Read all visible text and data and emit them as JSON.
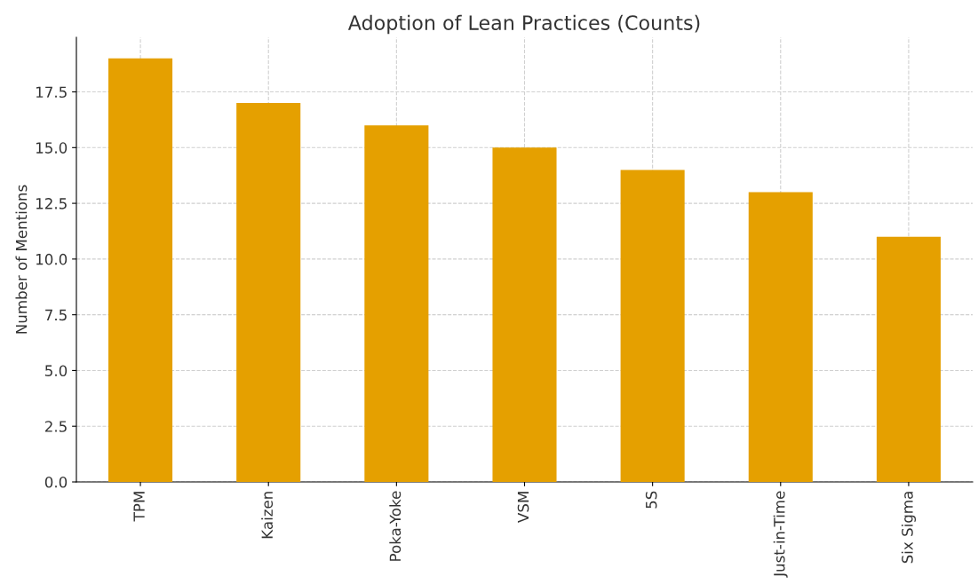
{
  "chart_data": {
    "type": "bar",
    "title": "Adoption of Lean Practices (Counts)",
    "ylabel": "Number of Mentions",
    "categories": [
      "TPM",
      "Kaizen",
      "Poka-Yoke",
      "VSM",
      "5S",
      "Just-in-Time",
      "Six Sigma"
    ],
    "values": [
      19,
      17,
      16,
      15,
      14,
      13,
      11
    ],
    "color": "#e5a000",
    "ylim": [
      0,
      19.95
    ],
    "yticks": [
      {
        "value": 0,
        "label": "0.0"
      },
      {
        "value": 2.5,
        "label": "2.5"
      },
      {
        "value": 5,
        "label": "5.0"
      },
      {
        "value": 7.5,
        "label": "7.5"
      },
      {
        "value": 10,
        "label": "10.0"
      },
      {
        "value": 12.5,
        "label": "12.5"
      },
      {
        "value": 15,
        "label": "15.0"
      },
      {
        "value": 17.5,
        "label": "17.5"
      }
    ],
    "grid": true
  }
}
